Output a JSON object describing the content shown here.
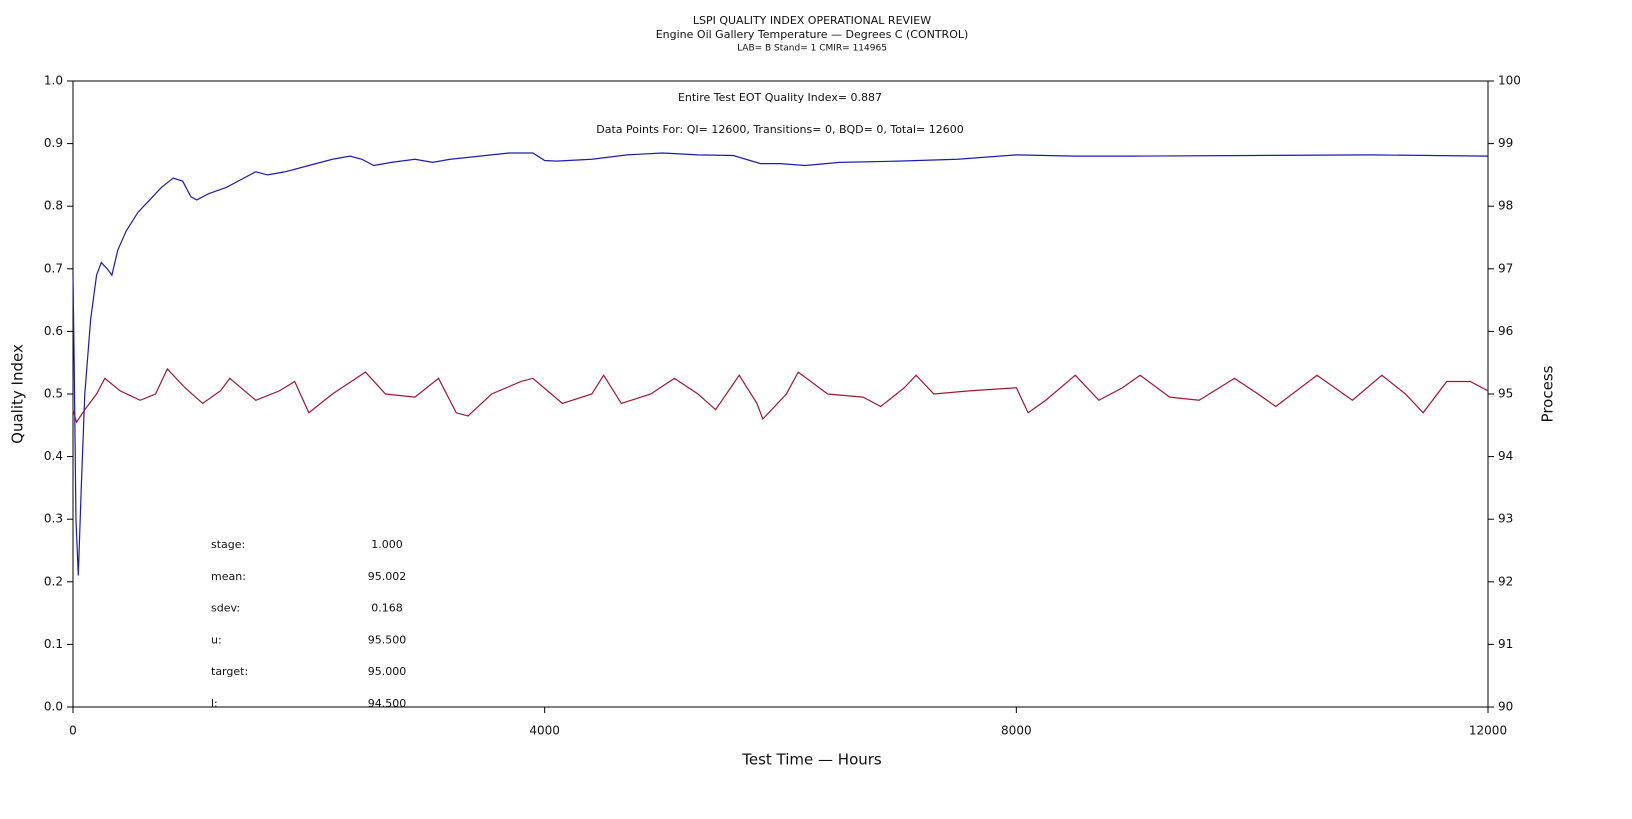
{
  "chart_data": {
    "type": "line",
    "title": "LSPI QUALITY INDEX OPERATIONAL REVIEW",
    "subtitle": "Engine Oil Gallery Temperature — Degrees C (CONTROL)",
    "caption": "LAB= B Stand= 1 CMIR= 114965",
    "annotations": [
      "Entire Test EOT Quality Index=  0.887",
      "Data Points For: QI= 12600, Transitions=     0, BQD=     0, Total= 12600"
    ],
    "stats": [
      {
        "label": "stage:",
        "value": "1.000"
      },
      {
        "label": "mean:",
        "value": "95.002"
      },
      {
        "label": "sdev:",
        "value": "0.168"
      },
      {
        "label": "u:",
        "value": "95.500"
      },
      {
        "label": "target:",
        "value": "95.000"
      },
      {
        "label": "l:",
        "value": "94.500"
      }
    ],
    "x_label": "Test Time — Hours",
    "y_label": "Quality Index",
    "y2_label": "Process",
    "xlim": [
      0,
      12000
    ],
    "xticks": [
      0,
      4000,
      8000,
      12000
    ],
    "ylim": [
      0,
      1
    ],
    "yticks": [
      {
        "value": 0,
        "label": "0.0"
      },
      0.1,
      0.2,
      0.3,
      0.4,
      0.5,
      0.6,
      0.7,
      0.8,
      0.9,
      {
        "value": 1,
        "label": "1.0"
      }
    ],
    "y2lim": [
      90,
      100
    ],
    "y2ticks": [
      90,
      91,
      92,
      93,
      94,
      95,
      96,
      97,
      98,
      99,
      100
    ],
    "series": [
      {
        "color": "#1c1cb0",
        "x": [
          0,
          10,
          25,
          45,
          70,
          100,
          150,
          200,
          240,
          290,
          330,
          380,
          450,
          550,
          650,
          750,
          850,
          930,
          1000,
          1050,
          1150,
          1300,
          1450,
          1550,
          1650,
          1800,
          2000,
          2200,
          2350,
          2450,
          2550,
          2700,
          2900,
          3050,
          3200,
          3450,
          3700,
          3900,
          4000,
          4100,
          4400,
          4700,
          5000,
          5300,
          5600,
          5830,
          6000,
          6210,
          6500,
          7000,
          7500,
          8000,
          8500,
          9000,
          10000,
          11000,
          12000
        ],
        "values": [
          0.69,
          0.55,
          0.3,
          0.21,
          0.35,
          0.5,
          0.62,
          0.69,
          0.71,
          0.7,
          0.69,
          0.73,
          0.76,
          0.79,
          0.81,
          0.83,
          0.845,
          0.84,
          0.815,
          0.81,
          0.82,
          0.83,
          0.845,
          0.855,
          0.85,
          0.855,
          0.865,
          0.875,
          0.88,
          0.875,
          0.865,
          0.87,
          0.875,
          0.87,
          0.875,
          0.88,
          0.885,
          0.885,
          0.873,
          0.872,
          0.875,
          0.882,
          0.885,
          0.882,
          0.881,
          0.868,
          0.868,
          0.865,
          0.87,
          0.872,
          0.875,
          0.882,
          0.88,
          0.88,
          0.881,
          0.882,
          0.88
        ]
      },
      {
        "color": "#a01830",
        "axis": "y2",
        "x": [
          0,
          30,
          100,
          200,
          270,
          400,
          570,
          700,
          800,
          950,
          1100,
          1250,
          1330,
          1550,
          1750,
          1880,
          2000,
          2200,
          2400,
          2480,
          2650,
          2900,
          3100,
          3250,
          3350,
          3550,
          3800,
          3900,
          4150,
          4400,
          4500,
          4650,
          4900,
          5100,
          5300,
          5450,
          5650,
          5800,
          5850,
          6050,
          6150,
          6400,
          6700,
          6850,
          7050,
          7150,
          7300,
          7600,
          8000,
          8100,
          8250,
          8500,
          8700,
          8900,
          9050,
          9300,
          9550,
          9850,
          10050,
          10200,
          10550,
          10850,
          11100,
          11300,
          11450,
          11650,
          11850,
          12000
        ],
        "values": [
          94.75,
          94.55,
          94.75,
          95.0,
          95.25,
          95.05,
          94.9,
          95.0,
          95.4,
          95.1,
          94.85,
          95.05,
          95.25,
          94.9,
          95.05,
          95.2,
          94.7,
          95.0,
          95.25,
          95.35,
          95.0,
          94.95,
          95.25,
          94.7,
          94.65,
          95.0,
          95.2,
          95.25,
          94.85,
          95.0,
          95.3,
          94.85,
          95.0,
          95.25,
          95.0,
          94.75,
          95.3,
          94.85,
          94.6,
          95.0,
          95.35,
          95.0,
          94.95,
          94.8,
          95.1,
          95.3,
          95.0,
          95.05,
          95.1,
          94.7,
          94.9,
          95.3,
          94.9,
          95.1,
          95.3,
          94.95,
          94.9,
          95.25,
          95.0,
          94.8,
          95.3,
          94.9,
          95.3,
          95.0,
          94.7,
          95.2,
          95.2,
          95.05
        ]
      }
    ]
  }
}
